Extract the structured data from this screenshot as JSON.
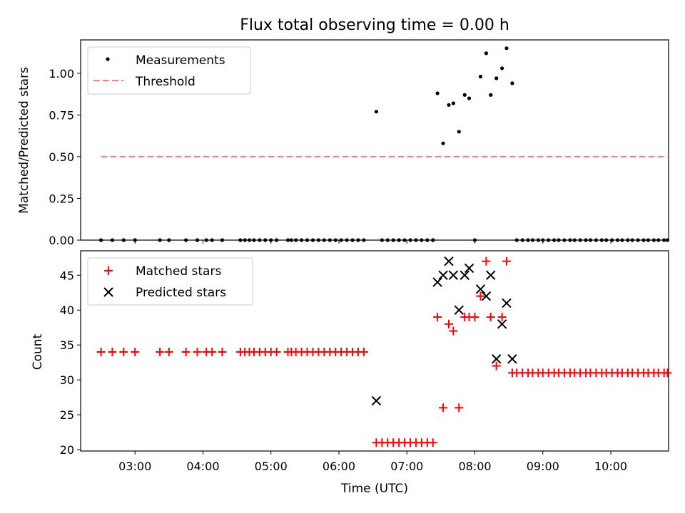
{
  "chart_data": [
    {
      "type": "scatter",
      "title": "Flux total observing time = 0.00 h",
      "xlabel": "",
      "ylabel": "Matched/Predicted stars",
      "xlim": [
        "02:12",
        "10:51"
      ],
      "ylim": [
        0,
        1.2
      ],
      "yticks": [
        "0.00",
        "0.25",
        "0.50",
        "0.75",
        "1.00"
      ],
      "legend_position": "upper-left",
      "grid": false,
      "series": [
        {
          "name": "Measurements",
          "color": "#000000",
          "marker": "dot",
          "x": [
            "02:30",
            "02:40",
            "02:50",
            "03:00",
            "03:22",
            "03:30",
            "03:45",
            "03:55",
            "04:03",
            "04:08",
            "04:17",
            "04:33",
            "04:37",
            "04:41",
            "04:45",
            "04:50",
            "04:55",
            "04:60",
            "05:05",
            "05:15",
            "05:18",
            "05:22",
            "05:27",
            "05:32",
            "05:37",
            "05:42",
            "05:47",
            "05:52",
            "05:57",
            "06:02",
            "06:07",
            "06:12",
            "06:17",
            "06:22",
            "06:33",
            "06:38",
            "06:43",
            "06:48",
            "06:53",
            "06:58",
            "07:03",
            "07:08",
            "07:13",
            "07:18",
            "07:23",
            "07:27",
            "07:32",
            "07:37",
            "07:41",
            "07:46",
            "07:51",
            "07:55",
            "08:00",
            "08:05",
            "08:10",
            "08:14",
            "08:19",
            "08:24",
            "08:28",
            "08:33",
            "08:37",
            "08:42",
            "08:47",
            "08:51",
            "08:56",
            "09:00",
            "09:05",
            "09:10",
            "09:14",
            "09:19",
            "09:24",
            "09:28",
            "09:33",
            "09:38",
            "09:42",
            "09:47",
            "09:52",
            "09:56",
            "10:01",
            "10:06",
            "10:10",
            "10:15",
            "10:19",
            "10:24",
            "10:29",
            "10:33",
            "10:38",
            "10:42",
            "10:47",
            "10:50"
          ],
          "y": [
            0,
            0,
            0,
            0,
            0,
            0,
            0,
            0,
            0,
            0,
            0,
            0,
            0,
            0,
            0,
            0,
            0,
            0,
            0,
            0,
            0,
            0,
            0,
            0,
            0,
            0,
            0,
            0,
            0,
            0,
            0,
            0,
            0,
            0,
            0.77,
            0,
            0,
            0,
            0,
            0,
            0,
            0,
            0,
            0,
            0,
            0.88,
            0.58,
            0.81,
            0.82,
            0.65,
            0.87,
            0.85,
            0,
            0.98,
            1.12,
            0.87,
            0.97,
            1.03,
            1.15,
            0.94,
            0,
            0,
            0,
            0,
            0,
            0,
            0,
            0,
            0,
            0,
            0,
            0,
            0,
            0,
            0,
            0,
            0,
            0,
            0,
            0,
            0,
            0,
            0,
            0,
            0,
            0,
            0,
            0,
            0,
            0
          ]
        },
        {
          "name": "Threshold",
          "color": "#ff7f7f",
          "marker": "dashed-line",
          "x": [
            "02:30",
            "10:50"
          ],
          "y": [
            0.5,
            0.5
          ]
        }
      ]
    },
    {
      "type": "scatter",
      "title": "",
      "xlabel": "Time (UTC)",
      "ylabel": "Count",
      "xlim": [
        "02:12",
        "10:51"
      ],
      "ylim": [
        19.8,
        48.5
      ],
      "yticks": [
        "20",
        "25",
        "30",
        "35",
        "40",
        "45"
      ],
      "xticks": [
        "03:00",
        "04:00",
        "05:00",
        "06:00",
        "07:00",
        "08:00",
        "09:00",
        "10:00"
      ],
      "legend_position": "upper-left",
      "grid": false,
      "series": [
        {
          "name": "Matched stars",
          "color": "#ff0000",
          "marker": "plus",
          "x": [
            "02:30",
            "02:40",
            "02:50",
            "03:00",
            "03:22",
            "03:30",
            "03:45",
            "03:55",
            "04:03",
            "04:08",
            "04:17",
            "04:33",
            "04:37",
            "04:41",
            "04:45",
            "04:50",
            "04:55",
            "04:60",
            "05:05",
            "05:15",
            "05:18",
            "05:22",
            "05:27",
            "05:32",
            "05:37",
            "05:42",
            "05:47",
            "05:52",
            "05:57",
            "06:02",
            "06:07",
            "06:12",
            "06:17",
            "06:22",
            "06:33",
            "06:38",
            "06:43",
            "06:48",
            "06:53",
            "06:58",
            "07:03",
            "07:08",
            "07:13",
            "07:18",
            "07:23",
            "07:27",
            "07:32",
            "07:37",
            "07:41",
            "07:46",
            "07:51",
            "07:55",
            "08:00",
            "08:05",
            "08:10",
            "08:14",
            "08:19",
            "08:24",
            "08:28",
            "08:33",
            "08:37",
            "08:42",
            "08:47",
            "08:51",
            "08:56",
            "09:00",
            "09:05",
            "09:10",
            "09:14",
            "09:19",
            "09:24",
            "09:28",
            "09:33",
            "09:38",
            "09:42",
            "09:47",
            "09:52",
            "09:56",
            "10:01",
            "10:06",
            "10:10",
            "10:15",
            "10:19",
            "10:24",
            "10:29",
            "10:33",
            "10:38",
            "10:42",
            "10:47",
            "10:50"
          ],
          "y": [
            34,
            34,
            34,
            34,
            34,
            34,
            34,
            34,
            34,
            34,
            34,
            34,
            34,
            34,
            34,
            34,
            34,
            34,
            34,
            34,
            34,
            34,
            34,
            34,
            34,
            34,
            34,
            34,
            34,
            34,
            34,
            34,
            34,
            34,
            21,
            21,
            21,
            21,
            21,
            21,
            21,
            21,
            21,
            21,
            21,
            39,
            26,
            38,
            37,
            26,
            39,
            39,
            39,
            42,
            47,
            39,
            32,
            39,
            47,
            31,
            31,
            31,
            31,
            31,
            31,
            31,
            31,
            31,
            31,
            31,
            31,
            31,
            31,
            31,
            31,
            31,
            31,
            31,
            31,
            31,
            31,
            31,
            31,
            31,
            31,
            31,
            31,
            31,
            31,
            31
          ]
        },
        {
          "name": "Predicted stars",
          "color": "#000000",
          "marker": "x",
          "x": [
            "06:33",
            "07:27",
            "07:32",
            "07:37",
            "07:41",
            "07:46",
            "07:51",
            "07:55",
            "08:05",
            "08:10",
            "08:14",
            "08:19",
            "08:24",
            "08:28",
            "08:33",
            "08:37"
          ],
          "y": [
            27,
            44,
            45,
            47,
            45,
            40,
            45,
            46,
            43,
            42,
            45,
            33,
            38,
            41,
            33,
            null
          ]
        }
      ]
    }
  ]
}
